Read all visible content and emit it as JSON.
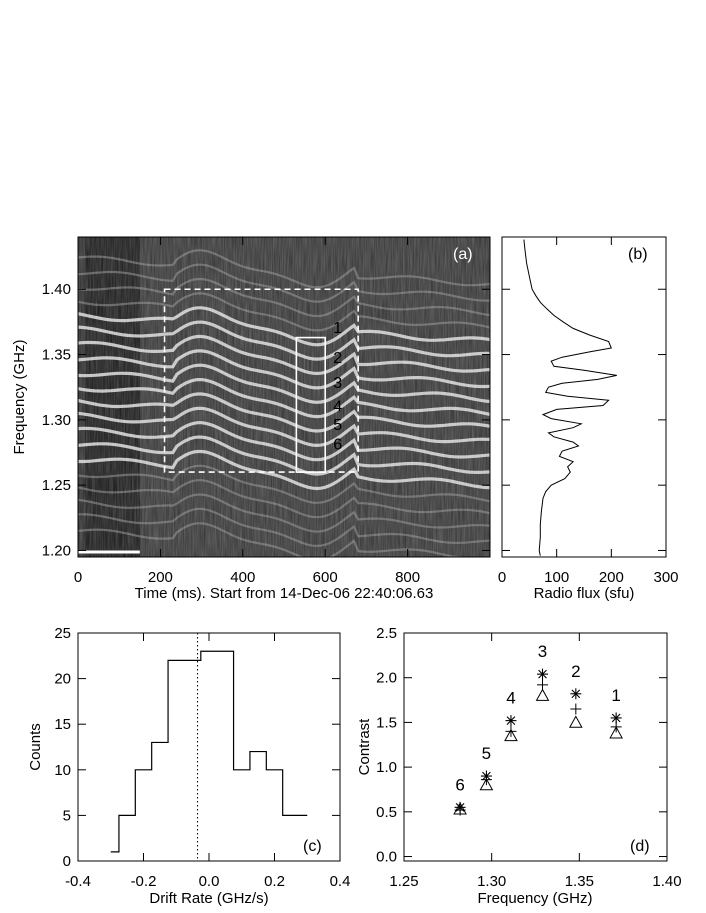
{
  "chart_data": [
    {
      "type": "heatmap",
      "panel_label": "(a)",
      "xlabel": "Time (ms). Start from 14-Dec-06 22:40:06.63",
      "ylabel": "Frequency (GHz)",
      "xlim": [
        0,
        1000
      ],
      "ylim": [
        1.195,
        1.44
      ],
      "xticks": [
        "0",
        "200",
        "400",
        "600",
        "800"
      ],
      "xtick_values": [
        0,
        200,
        400,
        600,
        800
      ],
      "yticks": [
        "1.20",
        "1.25",
        "1.30",
        "1.35",
        "1.40"
      ],
      "ytick_values": [
        1.2,
        1.25,
        1.3,
        1.35,
        1.4
      ],
      "colormap": "grayscale",
      "stripe_labels": [
        "1",
        "2",
        "3",
        "4",
        "5",
        "6"
      ],
      "stripe_freqs_ghz": [
        1.371,
        1.348,
        1.329,
        1.311,
        1.297,
        1.282
      ],
      "dashed_box": {
        "x": [
          210,
          680
        ],
        "y": [
          1.26,
          1.4
        ]
      },
      "solid_box": {
        "x": [
          530,
          600
        ],
        "y": [
          1.26,
          1.363
        ]
      },
      "scale_bar_ms": [
        0,
        150
      ]
    },
    {
      "type": "line",
      "panel_label": "(b)",
      "xlabel": "Radio flux (sfu)",
      "xlim": [
        0,
        300
      ],
      "ylim": [
        1.195,
        1.44
      ],
      "xticks": [
        "0",
        "100",
        "200",
        "300"
      ],
      "xtick_values": [
        0,
        100,
        200,
        300
      ],
      "series": [
        {
          "freq_ghz": [
            1.438,
            1.43,
            1.42,
            1.41,
            1.4,
            1.395,
            1.39,
            1.385,
            1.38,
            1.375,
            1.37,
            1.365,
            1.36,
            1.355,
            1.352,
            1.348,
            1.345,
            1.341,
            1.338,
            1.334,
            1.331,
            1.328,
            1.325,
            1.321,
            1.318,
            1.315,
            1.311,
            1.308,
            1.304,
            1.301,
            1.297,
            1.294,
            1.29,
            1.287,
            1.283,
            1.28,
            1.276,
            1.272,
            1.268,
            1.264,
            1.26,
            1.255,
            1.25,
            1.245,
            1.24,
            1.23,
            1.22,
            1.21,
            1.2,
            1.196
          ],
          "flux_sfu": [
            40,
            42,
            45,
            50,
            55,
            62,
            70,
            82,
            95,
            112,
            130,
            160,
            195,
            200,
            160,
            110,
            90,
            95,
            150,
            210,
            175,
            110,
            85,
            80,
            120,
            195,
            185,
            100,
            75,
            90,
            145,
            130,
            85,
            95,
            130,
            140,
            110,
            105,
            130,
            120,
            125,
            115,
            90,
            80,
            75,
            72,
            70,
            70,
            68,
            70
          ]
        }
      ]
    },
    {
      "type": "bar",
      "panel_label": "(c)",
      "style": "step histogram",
      "xlabel": "Drift Rate (GHz/s)",
      "ylabel": "Counts",
      "xlim": [
        -0.4,
        0.4
      ],
      "ylim": [
        0,
        25
      ],
      "xticks": [
        "-0.4",
        "-0.2",
        "0.0",
        "0.2",
        "0.4"
      ],
      "xtick_values": [
        -0.4,
        -0.2,
        0.0,
        0.2,
        0.4
      ],
      "yticks": [
        "0",
        "5",
        "10",
        "15",
        "20",
        "25"
      ],
      "ytick_values": [
        0,
        5,
        10,
        15,
        20,
        25
      ],
      "bin_edges": [
        -0.3,
        -0.275,
        -0.225,
        -0.175,
        -0.125,
        -0.075,
        -0.025,
        0.025,
        0.075,
        0.125,
        0.175,
        0.225,
        0.275,
        0.3
      ],
      "values": [
        1,
        5,
        10,
        13,
        22,
        22,
        23,
        23,
        10,
        12,
        10,
        5,
        5
      ],
      "reference_line_x": -0.035
    },
    {
      "type": "scatter",
      "panel_label": "(d)",
      "xlabel": "Frequency (GHz)",
      "ylabel": "Contrast",
      "xlim": [
        1.25,
        1.4
      ],
      "ylim": [
        -0.05,
        2.5
      ],
      "xticks": [
        "1.25",
        "1.30",
        "1.35",
        "1.40"
      ],
      "xtick_values": [
        1.25,
        1.3,
        1.35,
        1.4
      ],
      "yticks": [
        "0.0",
        "0.5",
        "1.0",
        "1.5",
        "2.0",
        "2.5"
      ],
      "ytick_values": [
        0.0,
        0.5,
        1.0,
        1.5,
        2.0,
        2.5
      ],
      "point_labels": [
        "6",
        "5",
        "4",
        "3",
        "2",
        "1"
      ],
      "x": [
        1.282,
        1.297,
        1.311,
        1.329,
        1.348,
        1.371
      ],
      "series": [
        {
          "marker": "asterisk",
          "values": [
            0.55,
            0.9,
            1.52,
            2.04,
            1.82,
            1.55
          ]
        },
        {
          "marker": "plus",
          "values": [
            0.52,
            0.86,
            1.4,
            1.92,
            1.65,
            1.45
          ]
        },
        {
          "marker": "triangle",
          "values": [
            0.53,
            0.8,
            1.35,
            1.8,
            1.5,
            1.38
          ]
        }
      ]
    }
  ]
}
